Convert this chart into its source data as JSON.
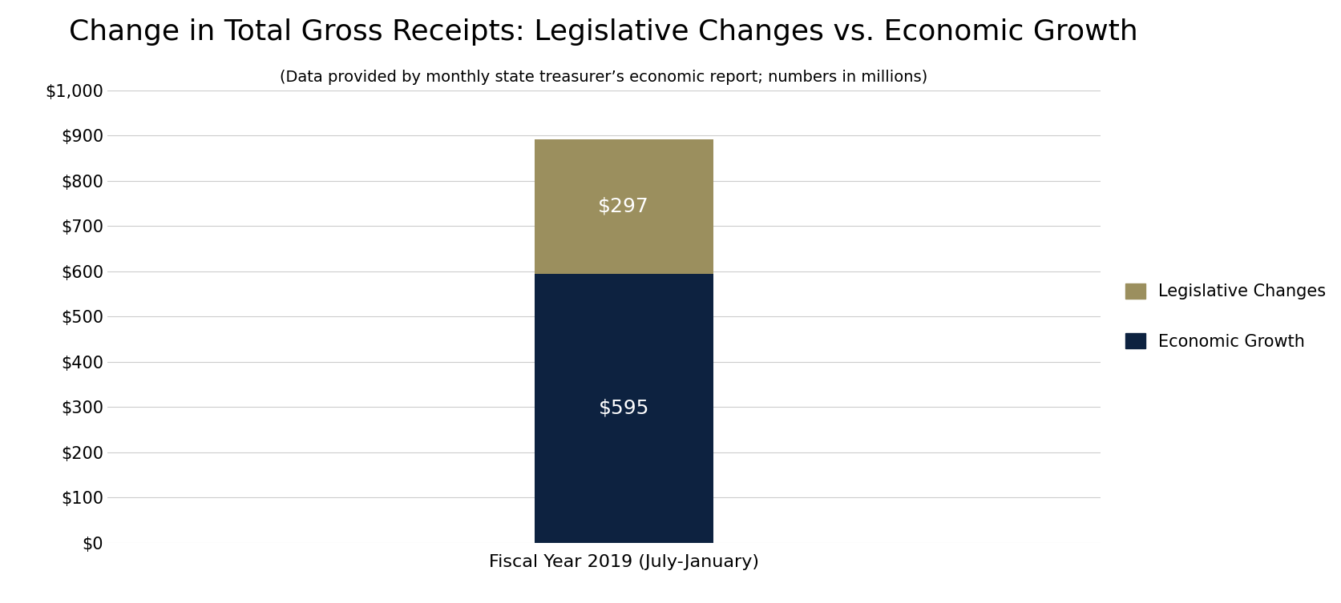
{
  "title": "Change in Total Gross Receipts: Legislative Changes vs. Economic Growth",
  "subtitle": "(Data provided by monthly state treasurer’s economic report; numbers in millions)",
  "xlabel": "Fiscal Year 2019 (July-January)",
  "ylabel": "",
  "categories": [
    "Fiscal Year 2019 (July-January)"
  ],
  "economic_growth": [
    595
  ],
  "legislative_changes": [
    297
  ],
  "economic_growth_color": "#0d2240",
  "legislative_changes_color": "#9b8f5e",
  "text_color_bar": "#ffffff",
  "background_color": "#ffffff",
  "ylim": [
    0,
    1000
  ],
  "yticks": [
    0,
    100,
    200,
    300,
    400,
    500,
    600,
    700,
    800,
    900,
    1000
  ],
  "ytick_labels": [
    "$0",
    "$100",
    "$200",
    "$300",
    "$400",
    "$500",
    "$600",
    "$700",
    "$800",
    "$900",
    "$1,000"
  ],
  "title_fontsize": 26,
  "subtitle_fontsize": 14,
  "xlabel_fontsize": 16,
  "bar_label_fontsize": 18,
  "legend_fontsize": 15,
  "tick_fontsize": 15,
  "bar_width": 0.45,
  "xlim": [
    -0.5,
    2.0
  ],
  "bar_x": 0.8,
  "legend_labels": [
    "Legislative Changes",
    "Economic Growth"
  ],
  "legend_colors": [
    "#9b8f5e",
    "#0d2240"
  ]
}
